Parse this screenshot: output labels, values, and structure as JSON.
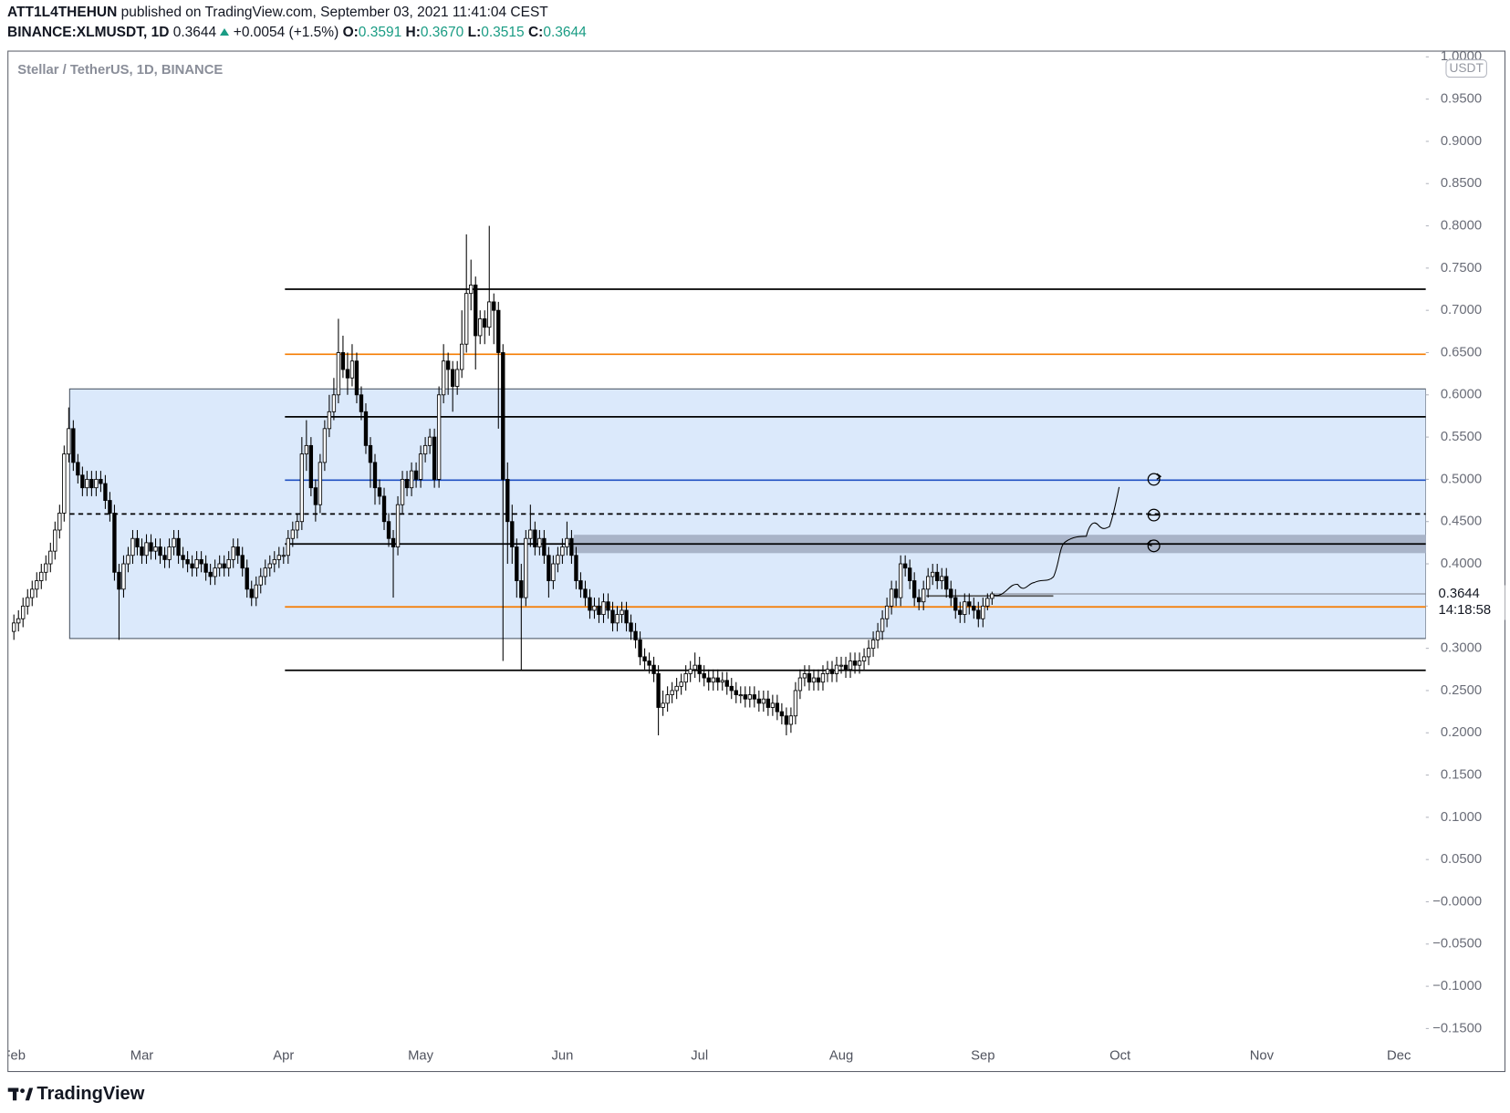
{
  "header": {
    "author": "ATT1L4THEHUN",
    "published": "published on TradingView.com, September 03, 2021 11:41:04 CEST",
    "symbol": "BINANCE:XLMUSDT, 1D",
    "last": "0.3644",
    "change": "+0.0054 (+1.5%)",
    "ohlc": [
      {
        "label": "O:",
        "value": "0.3591"
      },
      {
        "label": "H:",
        "value": "0.3670"
      },
      {
        "label": "L:",
        "value": "0.3515"
      },
      {
        "label": "C:",
        "value": "0.3644"
      }
    ]
  },
  "footer": {
    "brand": "TradingView"
  },
  "chart_data": {
    "type": "candlestick",
    "title": "Stellar / TetherUS, 1D, BINANCE",
    "unit": "USDT",
    "grid": false,
    "up_color": "#ffffff",
    "down_color": "#000000",
    "wick_color": "#000000",
    "xlim": [
      -1.3,
      308.9
    ],
    "xticks": [
      {
        "value": 0,
        "label": "Feb"
      },
      {
        "value": 28,
        "label": "Mar"
      },
      {
        "value": 59,
        "label": "Apr"
      },
      {
        "value": 89,
        "label": "May"
      },
      {
        "value": 120,
        "label": "Jun"
      },
      {
        "value": 150,
        "label": "Jul"
      },
      {
        "value": 181,
        "label": "Aug"
      },
      {
        "value": 212,
        "label": "Sep"
      },
      {
        "value": 242,
        "label": "Oct"
      },
      {
        "value": 273,
        "label": "Nov"
      },
      {
        "value": 303,
        "label": "Dec"
      }
    ],
    "ylim": [
      -0.1655,
      1.0068
    ],
    "yticks": [
      {
        "value": 1.0,
        "label": "1.0000"
      },
      {
        "value": 0.95,
        "label": "0.9500"
      },
      {
        "value": 0.9,
        "label": "0.9000"
      },
      {
        "value": 0.85,
        "label": "0.8500"
      },
      {
        "value": 0.8,
        "label": "0.8000"
      },
      {
        "value": 0.75,
        "label": "0.7500"
      },
      {
        "value": 0.7,
        "label": "0.7000"
      },
      {
        "value": 0.65,
        "label": "0.6500"
      },
      {
        "value": 0.6,
        "label": "0.6000"
      },
      {
        "value": 0.55,
        "label": "0.5500"
      },
      {
        "value": 0.5,
        "label": "0.5000"
      },
      {
        "value": 0.45,
        "label": "0.4500"
      },
      {
        "value": 0.4,
        "label": "0.4000"
      },
      {
        "value": 0.35,
        "label": "0.3500"
      },
      {
        "value": 0.3,
        "label": "0.3000"
      },
      {
        "value": 0.25,
        "label": "0.2500"
      },
      {
        "value": 0.2,
        "label": "0.2000"
      },
      {
        "value": 0.15,
        "label": "0.1500"
      },
      {
        "value": 0.1,
        "label": "0.1000"
      },
      {
        "value": 0.05,
        "label": "0.0500"
      },
      {
        "value": 0,
        "label": "−0.0000"
      },
      {
        "value": -0.05,
        "label": "−0.0500"
      },
      {
        "value": -0.1,
        "label": "−0.1000"
      },
      {
        "value": -0.15,
        "label": "−0.1500"
      }
    ],
    "last_price": {
      "value": 0.3644,
      "label": "0.3644"
    },
    "countdown": "14:18:58",
    "zones": [
      {
        "x0": 12.2,
        "y": [
          0.3116,
          0.607
        ],
        "color": "#dbe9fb",
        "border": "#4a5563"
      },
      {
        "x0": 122.6,
        "y": [
          0.4132,
          0.4338
        ],
        "color": "#a9b4c8",
        "border": "#a9b4c8"
      }
    ],
    "levels": [
      {
        "value": 0.725,
        "color": "#000000",
        "style": "solid",
        "from": 59.3
      },
      {
        "value": 0.648,
        "color": "#f57c00",
        "style": "solid",
        "from": 59.3
      },
      {
        "value": 0.574,
        "color": "#000000",
        "style": "solid",
        "from": 59.3
      },
      {
        "value": 0.499,
        "color": "#1e4fc2",
        "style": "solid",
        "from": 59.3
      },
      {
        "value": 0.459,
        "color": "#000000",
        "style": "dashed",
        "from": 12.2
      },
      {
        "value": 0.4235,
        "color": "#000000",
        "style": "solid",
        "from": 59.3
      },
      {
        "value": 0.349,
        "color": "#f57c00",
        "style": "solid",
        "from": 59.3
      },
      {
        "value": 0.274,
        "color": "#000000",
        "style": "solid",
        "from": 59.3
      },
      {
        "value": 0.362,
        "color": "#555555",
        "style": "solid",
        "from": 199.6,
        "to": 227.4
      }
    ],
    "open": [
      0.32,
      0.33,
      0.335,
      0.35,
      0.36,
      0.37,
      0.38,
      0.39,
      0.4,
      0.415,
      0.44,
      0.46,
      0.53,
      0.56,
      0.52,
      0.505,
      0.49,
      0.5,
      0.49,
      0.5,
      0.495,
      0.475,
      0.46,
      0.39,
      0.37,
      0.4,
      0.41,
      0.43,
      0.42,
      0.41,
      0.425,
      0.415,
      0.42,
      0.41,
      0.405,
      0.42,
      0.43,
      0.41,
      0.405,
      0.4,
      0.395,
      0.405,
      0.4,
      0.39,
      0.385,
      0.395,
      0.4,
      0.395,
      0.405,
      0.42,
      0.41,
      0.395,
      0.37,
      0.36,
      0.375,
      0.385,
      0.395,
      0.4,
      0.405,
      0.41,
      0.41,
      0.43,
      0.44,
      0.45,
      0.53,
      0.54,
      0.49,
      0.47,
      0.52,
      0.56,
      0.58,
      0.6,
      0.65,
      0.63,
      0.62,
      0.64,
      0.6,
      0.58,
      0.54,
      0.52,
      0.49,
      0.48,
      0.45,
      0.43,
      0.42,
      0.47,
      0.5,
      0.49,
      0.51,
      0.5,
      0.53,
      0.54,
      0.55,
      0.5,
      0.6,
      0.64,
      0.63,
      0.61,
      0.63,
      0.66,
      0.72,
      0.73,
      0.67,
      0.69,
      0.68,
      0.71,
      0.7,
      0.65,
      0.5,
      0.45,
      0.42,
      0.38,
      0.36,
      0.43,
      0.44,
      0.42,
      0.43,
      0.41,
      0.38,
      0.4,
      0.41,
      0.42,
      0.43,
      0.41,
      0.38,
      0.37,
      0.36,
      0.345,
      0.35,
      0.34,
      0.355,
      0.345,
      0.33,
      0.34,
      0.345,
      0.33,
      0.32,
      0.31,
      0.29,
      0.285,
      0.28,
      0.27,
      0.23,
      0.235,
      0.245,
      0.25,
      0.255,
      0.26,
      0.27,
      0.275,
      0.28,
      0.27,
      0.265,
      0.26,
      0.265,
      0.26,
      0.262,
      0.255,
      0.25,
      0.245,
      0.245,
      0.24,
      0.245,
      0.24,
      0.235,
      0.24,
      0.23,
      0.235,
      0.225,
      0.22,
      0.21,
      0.22,
      0.25,
      0.265,
      0.27,
      0.26,
      0.265,
      0.26,
      0.27,
      0.275,
      0.27,
      0.28,
      0.28,
      0.275,
      0.285,
      0.28,
      0.285,
      0.29,
      0.3,
      0.31,
      0.32,
      0.335,
      0.35,
      0.37,
      0.36,
      0.4,
      0.395,
      0.38,
      0.36,
      0.355,
      0.37,
      0.385,
      0.39,
      0.38,
      0.385,
      0.37,
      0.36,
      0.345,
      0.34,
      0.355,
      0.35,
      0.345,
      0.335,
      0.35,
      0.3591
    ],
    "high": [
      0.34,
      0.345,
      0.36,
      0.37,
      0.38,
      0.39,
      0.4,
      0.41,
      0.425,
      0.45,
      0.47,
      0.54,
      0.585,
      0.57,
      0.53,
      0.515,
      0.51,
      0.51,
      0.51,
      0.51,
      0.505,
      0.485,
      0.47,
      0.4,
      0.41,
      0.42,
      0.44,
      0.44,
      0.43,
      0.435,
      0.435,
      0.43,
      0.43,
      0.42,
      0.43,
      0.44,
      0.44,
      0.42,
      0.415,
      0.41,
      0.415,
      0.415,
      0.41,
      0.4,
      0.405,
      0.41,
      0.41,
      0.415,
      0.43,
      0.43,
      0.42,
      0.405,
      0.38,
      0.385,
      0.395,
      0.405,
      0.41,
      0.415,
      0.42,
      0.42,
      0.44,
      0.45,
      0.46,
      0.55,
      0.57,
      0.55,
      0.5,
      0.53,
      0.57,
      0.6,
      0.62,
      0.69,
      0.67,
      0.65,
      0.66,
      0.65,
      0.61,
      0.59,
      0.55,
      0.53,
      0.5,
      0.49,
      0.46,
      0.44,
      0.48,
      0.51,
      0.51,
      0.52,
      0.52,
      0.54,
      0.55,
      0.56,
      0.56,
      0.61,
      0.66,
      0.65,
      0.64,
      0.64,
      0.7,
      0.79,
      0.76,
      0.74,
      0.7,
      0.7,
      0.8,
      0.72,
      0.71,
      0.66,
      0.52,
      0.47,
      0.43,
      0.4,
      0.44,
      0.47,
      0.45,
      0.44,
      0.44,
      0.42,
      0.41,
      0.42,
      0.43,
      0.45,
      0.44,
      0.42,
      0.39,
      0.38,
      0.37,
      0.36,
      0.36,
      0.365,
      0.365,
      0.355,
      0.35,
      0.355,
      0.355,
      0.34,
      0.33,
      0.32,
      0.3,
      0.295,
      0.29,
      0.28,
      0.25,
      0.255,
      0.26,
      0.265,
      0.27,
      0.28,
      0.285,
      0.295,
      0.29,
      0.28,
      0.275,
      0.275,
      0.275,
      0.272,
      0.272,
      0.265,
      0.26,
      0.255,
      0.255,
      0.255,
      0.255,
      0.25,
      0.25,
      0.25,
      0.245,
      0.245,
      0.235,
      0.23,
      0.23,
      0.26,
      0.275,
      0.28,
      0.28,
      0.275,
      0.275,
      0.28,
      0.285,
      0.285,
      0.29,
      0.29,
      0.29,
      0.295,
      0.295,
      0.295,
      0.3,
      0.31,
      0.32,
      0.33,
      0.345,
      0.36,
      0.38,
      0.38,
      0.41,
      0.41,
      0.405,
      0.39,
      0.37,
      0.38,
      0.395,
      0.4,
      0.4,
      0.395,
      0.395,
      0.38,
      0.37,
      0.355,
      0.365,
      0.365,
      0.36,
      0.355,
      0.36,
      0.365,
      0.367
    ],
    "low": [
      0.31,
      0.32,
      0.325,
      0.34,
      0.35,
      0.36,
      0.37,
      0.38,
      0.39,
      0.405,
      0.43,
      0.45,
      0.52,
      0.51,
      0.495,
      0.48,
      0.48,
      0.48,
      0.48,
      0.485,
      0.465,
      0.45,
      0.38,
      0.31,
      0.36,
      0.39,
      0.4,
      0.41,
      0.4,
      0.4,
      0.405,
      0.405,
      0.4,
      0.395,
      0.395,
      0.41,
      0.4,
      0.395,
      0.39,
      0.385,
      0.385,
      0.39,
      0.38,
      0.375,
      0.375,
      0.385,
      0.385,
      0.385,
      0.395,
      0.4,
      0.385,
      0.36,
      0.35,
      0.35,
      0.365,
      0.375,
      0.385,
      0.39,
      0.395,
      0.4,
      0.4,
      0.42,
      0.43,
      0.44,
      0.51,
      0.48,
      0.45,
      0.46,
      0.51,
      0.55,
      0.57,
      0.59,
      0.62,
      0.6,
      0.61,
      0.59,
      0.57,
      0.53,
      0.49,
      0.47,
      0.47,
      0.44,
      0.42,
      0.36,
      0.41,
      0.46,
      0.48,
      0.48,
      0.49,
      0.49,
      0.52,
      0.53,
      0.49,
      0.49,
      0.59,
      0.6,
      0.58,
      0.6,
      0.62,
      0.65,
      0.7,
      0.63,
      0.66,
      0.66,
      0.67,
      0.66,
      0.56,
      0.285,
      0.4,
      0.4,
      0.36,
      0.274,
      0.35,
      0.42,
      0.41,
      0.41,
      0.4,
      0.36,
      0.37,
      0.39,
      0.4,
      0.41,
      0.4,
      0.37,
      0.36,
      0.35,
      0.335,
      0.335,
      0.33,
      0.33,
      0.335,
      0.32,
      0.32,
      0.33,
      0.32,
      0.31,
      0.3,
      0.28,
      0.275,
      0.27,
      0.26,
      0.197,
      0.22,
      0.225,
      0.235,
      0.24,
      0.245,
      0.25,
      0.26,
      0.265,
      0.26,
      0.255,
      0.25,
      0.25,
      0.25,
      0.25,
      0.245,
      0.24,
      0.235,
      0.235,
      0.23,
      0.23,
      0.23,
      0.225,
      0.225,
      0.22,
      0.22,
      0.215,
      0.21,
      0.197,
      0.2,
      0.21,
      0.24,
      0.255,
      0.25,
      0.25,
      0.25,
      0.25,
      0.26,
      0.26,
      0.26,
      0.27,
      0.265,
      0.265,
      0.27,
      0.27,
      0.275,
      0.28,
      0.29,
      0.3,
      0.31,
      0.325,
      0.34,
      0.35,
      0.35,
      0.385,
      0.37,
      0.35,
      0.345,
      0.345,
      0.36,
      0.375,
      0.37,
      0.37,
      0.36,
      0.35,
      0.335,
      0.33,
      0.33,
      0.34,
      0.335,
      0.325,
      0.325,
      0.345,
      0.3515
    ],
    "close": [
      0.33,
      0.335,
      0.35,
      0.36,
      0.37,
      0.38,
      0.39,
      0.4,
      0.415,
      0.44,
      0.46,
      0.53,
      0.56,
      0.52,
      0.505,
      0.49,
      0.5,
      0.49,
      0.5,
      0.495,
      0.475,
      0.46,
      0.39,
      0.37,
      0.4,
      0.41,
      0.43,
      0.42,
      0.41,
      0.425,
      0.415,
      0.42,
      0.41,
      0.405,
      0.42,
      0.43,
      0.41,
      0.405,
      0.4,
      0.395,
      0.405,
      0.4,
      0.39,
      0.385,
      0.395,
      0.4,
      0.395,
      0.405,
      0.42,
      0.41,
      0.395,
      0.37,
      0.36,
      0.375,
      0.385,
      0.395,
      0.4,
      0.405,
      0.41,
      0.41,
      0.43,
      0.44,
      0.45,
      0.53,
      0.54,
      0.49,
      0.47,
      0.52,
      0.56,
      0.58,
      0.6,
      0.65,
      0.63,
      0.62,
      0.64,
      0.6,
      0.58,
      0.54,
      0.52,
      0.49,
      0.48,
      0.45,
      0.43,
      0.42,
      0.47,
      0.5,
      0.49,
      0.51,
      0.5,
      0.53,
      0.54,
      0.55,
      0.5,
      0.6,
      0.64,
      0.63,
      0.61,
      0.63,
      0.66,
      0.72,
      0.73,
      0.67,
      0.69,
      0.68,
      0.71,
      0.7,
      0.65,
      0.5,
      0.45,
      0.42,
      0.38,
      0.36,
      0.43,
      0.44,
      0.42,
      0.43,
      0.41,
      0.38,
      0.4,
      0.41,
      0.42,
      0.43,
      0.41,
      0.38,
      0.37,
      0.36,
      0.345,
      0.35,
      0.34,
      0.355,
      0.345,
      0.33,
      0.34,
      0.345,
      0.33,
      0.32,
      0.31,
      0.29,
      0.285,
      0.28,
      0.27,
      0.23,
      0.235,
      0.245,
      0.25,
      0.255,
      0.26,
      0.27,
      0.275,
      0.28,
      0.27,
      0.265,
      0.26,
      0.265,
      0.26,
      0.262,
      0.255,
      0.25,
      0.245,
      0.245,
      0.24,
      0.245,
      0.24,
      0.235,
      0.24,
      0.23,
      0.235,
      0.225,
      0.22,
      0.21,
      0.22,
      0.25,
      0.265,
      0.27,
      0.26,
      0.265,
      0.26,
      0.27,
      0.275,
      0.27,
      0.28,
      0.28,
      0.275,
      0.285,
      0.28,
      0.285,
      0.29,
      0.3,
      0.31,
      0.32,
      0.335,
      0.35,
      0.37,
      0.36,
      0.4,
      0.395,
      0.38,
      0.36,
      0.355,
      0.37,
      0.385,
      0.39,
      0.38,
      0.385,
      0.37,
      0.36,
      0.345,
      0.34,
      0.355,
      0.35,
      0.345,
      0.335,
      0.35,
      0.3591,
      0.3644
    ]
  }
}
